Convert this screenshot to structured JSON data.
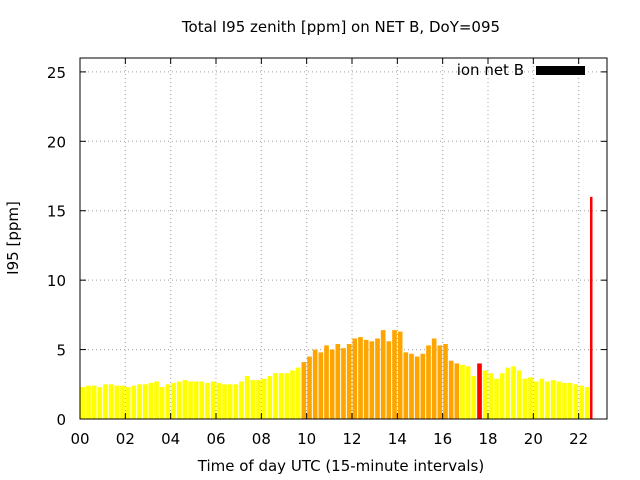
{
  "chart_data": {
    "type": "bar",
    "title": "Total I95 zenith [ppm] on NET B, DoY=095",
    "xlabel": "Time of day UTC (15-minute intervals)",
    "ylabel": "I95 [ppm]",
    "xlim": [
      0,
      23.25
    ],
    "ylim": [
      0,
      26
    ],
    "x_ticks": [
      "00",
      "02",
      "04",
      "06",
      "08",
      "10",
      "12",
      "14",
      "16",
      "18",
      "20",
      "22"
    ],
    "y_ticks": [
      "0",
      "5",
      "10",
      "15",
      "20",
      "25"
    ],
    "grid": true,
    "legend": {
      "label": "ion net B",
      "color": "#000000",
      "placement": "top-right"
    },
    "interval_hours": 0.25,
    "colors": {
      "low": "#ffff00",
      "medium": "#ffa500",
      "high": "#ff0000"
    },
    "series": [
      {
        "start_hour": 0,
        "values": [
          2.3,
          2.4,
          2.4,
          2.3,
          2.5,
          2.5,
          2.4,
          2.4,
          2.3,
          2.4,
          2.5,
          2.5,
          2.6,
          2.7,
          2.3,
          2.5,
          2.6,
          2.7,
          2.8,
          2.7,
          2.7,
          2.7,
          2.6,
          2.7,
          2.6,
          2.5,
          2.5,
          2.5,
          2.7,
          3.1,
          2.8,
          2.8,
          2.9,
          3.1,
          3.3,
          3.3,
          3.3,
          3.5,
          3.7,
          4.1,
          4.5,
          5.0,
          4.8,
          5.3,
          5.0,
          5.4,
          5.1,
          5.4,
          5.8,
          5.9,
          5.7,
          5.6,
          5.8,
          6.4,
          5.6,
          6.4,
          6.3,
          4.8,
          4.7,
          4.5,
          4.7,
          5.3,
          5.8,
          5.3,
          5.4,
          4.2,
          4.0,
          3.9,
          3.8,
          3.1,
          4.0,
          3.5,
          3.3,
          2.9,
          3.3,
          3.7,
          3.8,
          3.5,
          2.9,
          3.0,
          2.7,
          2.9,
          2.7,
          2.8,
          2.7,
          2.6,
          2.6,
          2.5,
          2.4,
          2.3,
          16.0
        ],
        "levels": [
          "low",
          "low",
          "low",
          "low",
          "low",
          "low",
          "low",
          "low",
          "low",
          "low",
          "low",
          "low",
          "low",
          "low",
          "low",
          "low",
          "low",
          "low",
          "low",
          "low",
          "low",
          "low",
          "low",
          "low",
          "low",
          "low",
          "low",
          "low",
          "low",
          "low",
          "low",
          "low",
          "low",
          "low",
          "low",
          "low",
          "low",
          "low",
          "low",
          "medium",
          "medium",
          "medium",
          "medium",
          "medium",
          "medium",
          "medium",
          "medium",
          "medium",
          "medium",
          "medium",
          "medium",
          "medium",
          "medium",
          "medium",
          "medium",
          "medium",
          "medium",
          "medium",
          "medium",
          "medium",
          "medium",
          "medium",
          "medium",
          "medium",
          "medium",
          "medium",
          "medium",
          "low",
          "low",
          "low",
          "high",
          "low",
          "low",
          "low",
          "low",
          "low",
          "low",
          "low",
          "low",
          "low",
          "low",
          "low",
          "low",
          "low",
          "low",
          "low",
          "low",
          "low",
          "low",
          "low",
          "high"
        ]
      }
    ]
  }
}
